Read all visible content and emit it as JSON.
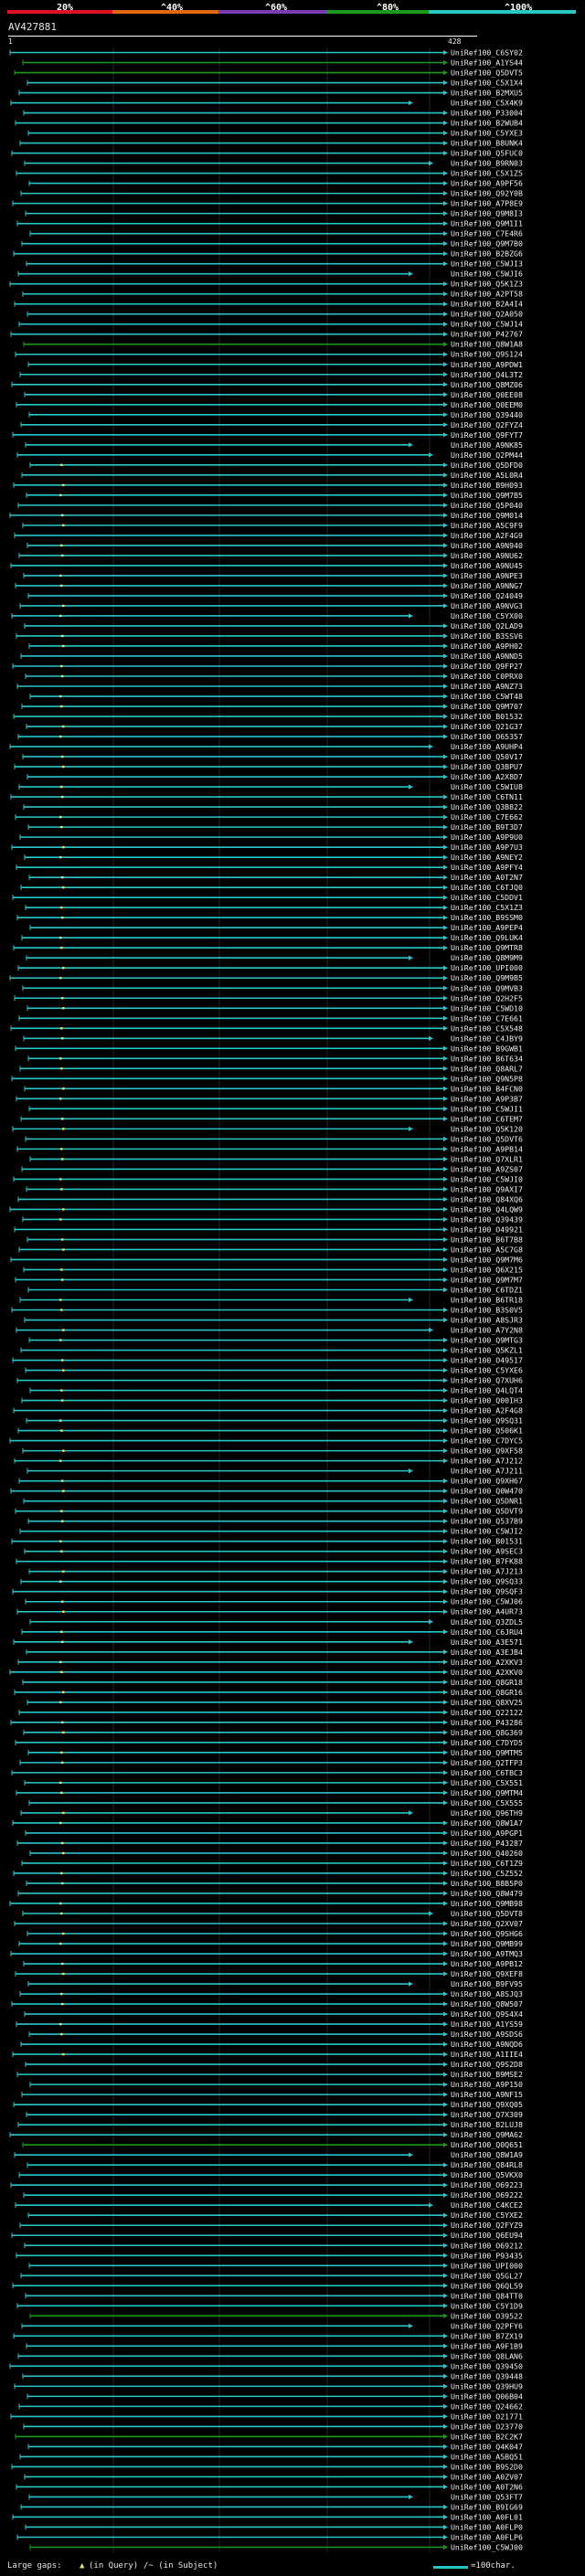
{
  "scale": {
    "labels": [
      "20%",
      "^40%",
      "^60%",
      "^80%",
      "^100%"
    ],
    "colors": [
      "#e01020",
      "#e06a10",
      "#7a3bb0",
      "#1a9a1a",
      "#28c6c8"
    ]
  },
  "query": {
    "id": "AV427881",
    "start": "1",
    "end": "428"
  },
  "hits": [
    "UniRef100_C6SY02",
    "UniRef100_A1YS44",
    "UniRef100_Q5DVT5",
    "UniRef100_C5X1X4",
    "UniRef100_B2MXU5",
    "UniRef100_C5X4K9",
    "UniRef100_P33004",
    "UniRef100_B2WUB4",
    "UniRef100_C5YXE3",
    "UniRef100_B8UNK4",
    "UniRef100_Q5FUC0",
    "UniRef100_B9RN03",
    "UniRef100_C5X1Z5",
    "UniRef100_A9PF56",
    "UniRef100_Q92Y0B",
    "UniRef100_A7P8E9",
    "UniRef100_Q9M8I3",
    "UniRef100_Q9M1I1",
    "UniRef100_C7E4R6",
    "UniRef100_Q9M7B0",
    "UniRef100_B2BZG6",
    "UniRef100_C5WJI3",
    "UniRef100_C5WJI6",
    "UniRef100_Q5K1Z3",
    "UniRef100_A2PT58",
    "UniRef100_B2A4I4",
    "UniRef100_Q2A050",
    "UniRef100_C5WJ14",
    "UniRef100_P42767",
    "UniRef100_Q8W1A8",
    "UniRef100_Q9S124",
    "UniRef100_A9PDW1",
    "UniRef100_Q4L3T2",
    "UniRef100_Q8MZ06",
    "UniRef100_Q0EE08",
    "UniRef100_Q0EEM0",
    "UniRef100_Q39440",
    "UniRef100_Q2FYZ4",
    "UniRef100_Q9FYT7",
    "UniRef100_A9NK85",
    "UniRef100_Q2PM44",
    "UniRef100_Q5DFD0",
    "UniRef100_A5L0R4",
    "UniRef100_B9H093",
    "UniRef100_Q9M7B5",
    "UniRef100_Q5P040",
    "UniRef100_Q9M014",
    "UniRef100_A5C9F9",
    "UniRef100_A2F4G9",
    "UniRef100_A9N940",
    "UniRef100_A9NU62",
    "UniRef100_A9NU45",
    "UniRef100_A9NPE3",
    "UniRef100_A9NNG7",
    "UniRef100_Q24049",
    "UniRef100_A9NVG3",
    "UniRef100_C5YX00",
    "UniRef100_Q2LAD9",
    "UniRef100_B3SSV6",
    "UniRef100_A9PH02",
    "UniRef100_A9NND5",
    "UniRef100_Q9FP27",
    "UniRef100_C0PRX0",
    "UniRef100_A9NZ73",
    "UniRef100_C5WT48",
    "UniRef100_Q9M707",
    "UniRef100_B01532",
    "UniRef100_Q21G37",
    "UniRef100_O65357",
    "UniRef100_A9UHP4",
    "UniRef100_Q50V17",
    "UniRef100_Q3BPU7",
    "UniRef100_A2X8D7",
    "UniRef100_C5WIU8",
    "UniRef100_C6TN11",
    "UniRef100_Q3B822",
    "UniRef100_C7E662",
    "UniRef100_B9T3D7",
    "UniRef100_A9P9U0",
    "UniRef100_A9P7U3",
    "UniRef100_A9NEY2",
    "UniRef100_A9PFY4",
    "UniRef100_A0T2N7",
    "UniRef100_C6TJQ0",
    "UniRef100_C5DDV1",
    "UniRef100_C5X1Z3",
    "UniRef100_B9SSM0",
    "UniRef100_A9PEP4",
    "UniRef100_Q9LUK4",
    "UniRef100_Q9MTR8",
    "UniRef100_Q8M9M9",
    "UniRef100_UPI000",
    "UniRef100_Q9M9B5",
    "UniRef100_Q9MVB3",
    "UniRef100_Q2H2F5",
    "UniRef100_C5WD10",
    "UniRef100_C7E661",
    "UniRef100_C5X548",
    "UniRef100_C4JBY9",
    "UniRef100_B9GWB1",
    "UniRef100_B6T634",
    "UniRef100_Q8ARL7",
    "UniRef100_Q9N5P8",
    "UniRef100_B4FCN0",
    "UniRef100_A9P3B7",
    "UniRef100_C5WJI1",
    "UniRef100_C6TEM7",
    "UniRef100_Q5K120",
    "UniRef100_Q5DVT6",
    "UniRef100_A9PB14",
    "UniRef100_Q7XLR1",
    "UniRef100_A9ZS07",
    "UniRef100_C5WJI0",
    "UniRef100_Q9AXI7",
    "UniRef100_Q84XQ6",
    "UniRef100_Q4LQW9",
    "UniRef100_Q39439",
    "UniRef100_O49921",
    "UniRef100_B6T7B8",
    "UniRef100_A5C7G8",
    "UniRef100_Q9M7M6",
    "UniRef100_Q6X215",
    "UniRef100_Q9M7M7",
    "UniRef100_C6TDZ1",
    "UniRef100_B6TR18",
    "UniRef100_B3S0V5",
    "UniRef100_A8SJR3",
    "UniRef100_A7Y2N8",
    "UniRef100_Q9MTG3",
    "UniRef100_Q5KZL1",
    "UniRef100_O49517",
    "UniRef100_C5YXE6",
    "UniRef100_Q7XUH6",
    "UniRef100_Q4LQT4",
    "UniRef100_Q00IH3",
    "UniRef100_A2F4G8",
    "UniRef100_Q9SQ31",
    "UniRef100_Q506K1",
    "UniRef100_C7DYC5",
    "UniRef100_Q9XF58",
    "UniRef100_A7J212",
    "UniRef100_A7J211",
    "UniRef100_Q9XH67",
    "UniRef100_Q0W470",
    "UniRef100_Q5DNR1",
    "UniRef100_Q5DVT9",
    "UniRef100_Q537B9",
    "UniRef100_C5WJI2",
    "UniRef100_B01531",
    "UniRef100_A9SEC3",
    "UniRef100_B7FK88",
    "UniRef100_A7J213",
    "UniRef100_Q9SQ33",
    "UniRef100_Q9SQF3",
    "UniRef100_C5WJ06",
    "UniRef100_A4UR73",
    "UniRef100_Q3ZDL5",
    "UniRef100_C6JRU4",
    "UniRef100_A3E571",
    "UniRef100_A3EJB4",
    "UniRef100_A2XKV3",
    "UniRef100_A2XKV0",
    "UniRef100_Q8GR18",
    "UniRef100_Q8GR16",
    "UniRef100_Q8XV25",
    "UniRef100_Q22122",
    "UniRef100_P43286",
    "UniRef100_Q8G369",
    "UniRef100_C7DYD5",
    "UniRef100_Q9MTM5",
    "UniRef100_Q2TFP3",
    "UniRef100_C6TBC3",
    "UniRef100_C5X551",
    "UniRef100_Q9MTM4",
    "UniRef100_C5X555",
    "UniRef100_Q96TH9",
    "UniRef100_Q8W1A7",
    "UniRef100_A9PGP1",
    "UniRef100_P43287",
    "UniRef100_Q40260",
    "UniRef100_C6T1Z9",
    "UniRef100_C5Z552",
    "UniRef100_B8B5P0",
    "UniRef100_Q8W479",
    "UniRef100_Q9MB98",
    "UniRef100_Q5DVT8",
    "UniRef100_Q2XV07",
    "UniRef100_Q9SHG6",
    "UniRef100_Q9MB99",
    "UniRef100_A9TMQ3",
    "UniRef100_A9PB12",
    "UniRef100_Q9XEF8",
    "UniRef100_B9FV95",
    "UniRef100_A8SJQ3",
    "UniRef100_Q8W507",
    "UniRef100_Q9S4X4",
    "UniRef100_A1YS59",
    "UniRef100_A9SDS6",
    "UniRef100_A9NQD6",
    "UniRef100_A1IIE4",
    "UniRef100_Q9S2D8",
    "UniRef100_B9MSE2",
    "UniRef100_A9P150",
    "UniRef100_A9NF15",
    "UniRef100_Q9XQ05",
    "UniRef100_Q7X309",
    "UniRef100_B2LUJ8",
    "UniRef100_Q9MA62",
    "UniRef100_Q0Q651",
    "UniRef100_Q8W1A9",
    "UniRef100_Q84RL8",
    "UniRef100_Q5VKX0",
    "UniRef100_O69223",
    "UniRef100_O69222",
    "UniRef100_C4KCE2",
    "UniRef100_C5YXE2",
    "UniRef100_Q2FYZ9",
    "UniRef100_Q6EU94",
    "UniRef100_O69212",
    "UniRef100_P93435",
    "UniRef100_UPI000",
    "UniRef100_Q5GL27",
    "UniRef100_Q6QL59",
    "UniRef100_Q84TT0",
    "UniRef100_C5Y1D9",
    "UniRef100_O39522",
    "UniRef100_Q2PFY6",
    "UniRef100_B7ZX19",
    "UniRef100_A9F1B9",
    "UniRef100_Q8LAN6",
    "UniRef100_Q39450",
    "UniRef100_Q39448",
    "UniRef100_Q39HU9",
    "UniRef100_Q06B04",
    "UniRef100_Q24662",
    "UniRef100_O21771",
    "UniRef100_O23770",
    "UniRef100_B2C2K7",
    "UniRef100_Q4K047",
    "UniRef100_A5BQ51",
    "UniRef100_B9S2D0",
    "UniRef100_A0ZV07",
    "UniRef100_A0T2N6",
    "UniRef100_Q53FT7",
    "UniRef100_B9IG69",
    "UniRef100_A0FL01",
    "UniRef100_A0FLP0",
    "UniRef100_A0FLP6",
    "UniRef100_C5WJ00"
  ],
  "legend": {
    "large_gaps": "Large gaps:",
    "in_query": "(in Query)",
    "in_subject": "/~ (in Subject)",
    "scale_note": "=100char."
  }
}
